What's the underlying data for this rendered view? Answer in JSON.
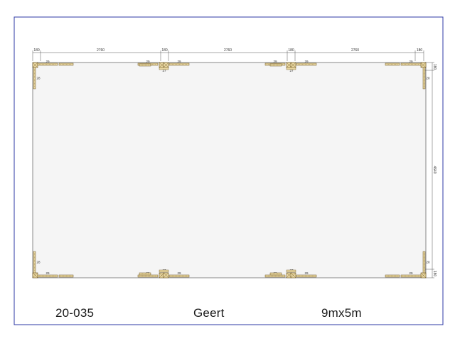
{
  "drawing": {
    "dimension_labels": {
      "top_post": "180",
      "top_span": "2760",
      "right_post": "180",
      "right_span": "4640",
      "beam_short": "29",
      "beam_side": "28",
      "post_mark": "27"
    }
  },
  "title_block": {
    "project_number": "20-035",
    "client": "Geert",
    "size": "9mx5m"
  },
  "colors": {
    "frame": "#2e3aa6",
    "floor_fill": "#f5f5f5",
    "floor_stroke": "#6b6b6b",
    "timber": "#e8d6a0",
    "timber_stroke": "#6d5522",
    "dimension": "#555555"
  }
}
